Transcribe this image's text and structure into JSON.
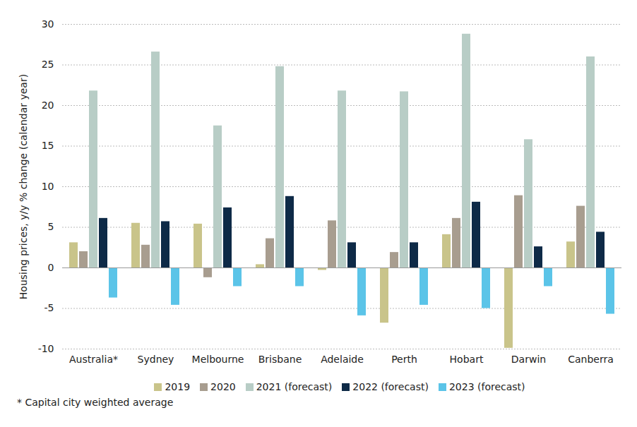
{
  "chart_data": {
    "type": "bar",
    "y_label": "Housing prices, y/y % change (calendar year)",
    "note": "* Capital city weighted average",
    "categories": [
      "Australia*",
      "Sydney",
      "Melbourne",
      "Brisbane",
      "Adelaide",
      "Perth",
      "Hobart",
      "Darwin",
      "Canberra"
    ],
    "series": [
      {
        "name": "2019",
        "color": "#c9c48a",
        "values": [
          3.1,
          5.5,
          5.4,
          0.4,
          -0.3,
          -6.8,
          4.1,
          -9.9,
          3.2
        ]
      },
      {
        "name": "2020",
        "color": "#a89d8f",
        "values": [
          2.0,
          2.8,
          -1.2,
          3.6,
          5.8,
          1.9,
          6.1,
          8.9,
          7.6
        ]
      },
      {
        "name": "2021 (forecast)",
        "color": "#b8cdc6",
        "values": [
          21.8,
          26.6,
          17.5,
          24.8,
          21.8,
          21.7,
          28.8,
          15.8,
          26.0
        ]
      },
      {
        "name": "2022 (forecast)",
        "color": "#0e2a47",
        "values": [
          6.1,
          5.7,
          7.4,
          8.8,
          3.1,
          3.1,
          8.1,
          2.6,
          4.4
        ]
      },
      {
        "name": "2023 (forecast)",
        "color": "#5bc4e8",
        "values": [
          -3.7,
          -4.6,
          -2.3,
          -2.3,
          -5.9,
          -4.6,
          -5.0,
          -2.3,
          -5.7
        ]
      }
    ],
    "ylim": [
      -10,
      30
    ],
    "yticks": [
      -10,
      -5,
      0,
      5,
      10,
      15,
      20,
      25,
      30
    ],
    "grid": true,
    "legend": "bottom"
  }
}
